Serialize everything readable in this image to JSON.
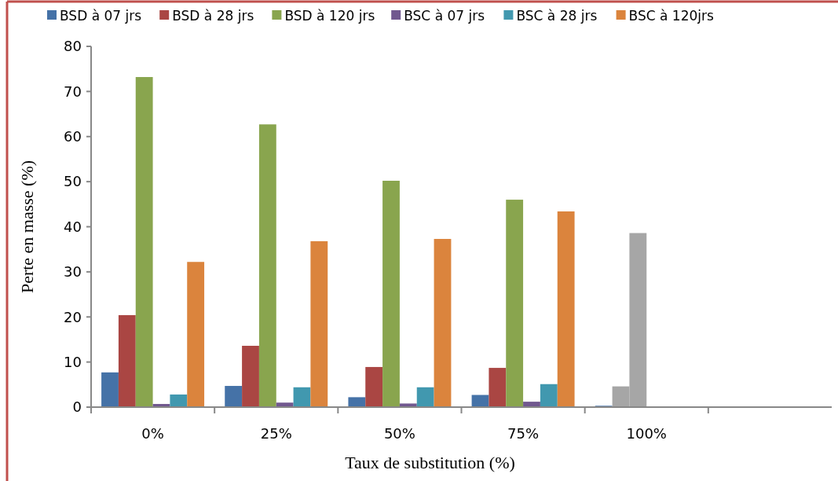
{
  "chart_data": {
    "type": "bar",
    "xlabel": "Taux de substitution  (%)",
    "ylabel": "Perte en masse (%)",
    "categories": [
      "0%",
      "25%",
      "50%",
      "75%",
      "100%",
      null
    ],
    "series": [
      {
        "name": "BSD à 07 jrs",
        "color": "#4572a7",
        "values": [
          7.7,
          4.7,
          2.2,
          2.7,
          0.3,
          null
        ]
      },
      {
        "name": "BSD à 28 jrs",
        "color": "#aa4643",
        "colors": [
          "#aa4643",
          "#aa4643",
          "#aa4643",
          "#aa4643",
          "#a6a6a6",
          null
        ],
        "values": [
          20.4,
          13.6,
          8.9,
          8.7,
          4.6,
          null
        ]
      },
      {
        "name": "BSD à 120 jrs",
        "color": "#89a54e",
        "colors": [
          "#89a54e",
          "#89a54e",
          "#89a54e",
          "#89a54e",
          "#a6a6a6",
          null
        ],
        "values": [
          73.2,
          62.7,
          50.2,
          46.0,
          38.6,
          null
        ]
      },
      {
        "name": "BSC à 07 jrs",
        "color": "#71588f",
        "values": [
          0.7,
          1.0,
          0.8,
          1.2,
          null,
          null
        ]
      },
      {
        "name": "BSC à 28 jrs",
        "color": "#4198af",
        "values": [
          2.8,
          4.4,
          4.4,
          5.1,
          null,
          null
        ]
      },
      {
        "name": "BSC à 120jrs",
        "color": "#db843d",
        "values": [
          32.2,
          36.8,
          37.3,
          43.4,
          null,
          null
        ]
      }
    ],
    "ylim": [
      0,
      80
    ],
    "yticks": [
      0,
      10,
      20,
      30,
      40,
      50,
      60,
      70,
      80
    ],
    "grid": false,
    "legend": "top"
  }
}
